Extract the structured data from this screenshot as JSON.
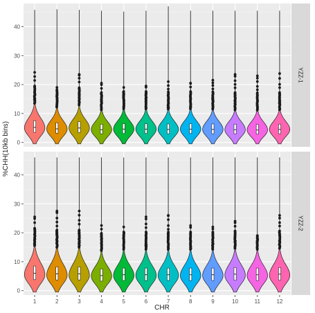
{
  "chart_data": {
    "type": "violin",
    "xlabel": "CHR",
    "ylabel": "%CHH(10kb bins)",
    "categories": [
      "1",
      "2",
      "3",
      "4",
      "5",
      "6",
      "7",
      "8",
      "9",
      "10",
      "11",
      "12"
    ],
    "ylim": [
      -1.5,
      48
    ],
    "yticks": [
      "0",
      "10",
      "20",
      "30",
      "40"
    ],
    "grid": true,
    "legend": "none",
    "colors": [
      "#F8766D",
      "#DE8C00",
      "#B79F00",
      "#7CAE00",
      "#00BA38",
      "#00C08B",
      "#00BFC4",
      "#00B4F0",
      "#619CFF",
      "#C77CFF",
      "#F564E3",
      "#FF64B0"
    ],
    "panels": [
      {
        "strip": "YZZ-1",
        "series": [
          {
            "category": "1",
            "median": 5.2,
            "q1": 3.5,
            "q3": 7.5,
            "max": 45.8,
            "mode": 5.0,
            "max_outlier": 24.2
          },
          {
            "category": "2",
            "median": 4.7,
            "q1": 3.2,
            "q3": 6.8,
            "max": 46.0,
            "mode": 4.6,
            "max_outlier": 19.0
          },
          {
            "category": "3",
            "median": 5.0,
            "q1": 3.4,
            "q3": 7.2,
            "max": 45.8,
            "mode": 5.0,
            "max_outlier": 23.5
          },
          {
            "category": "4",
            "median": 4.4,
            "q1": 3.0,
            "q3": 6.3,
            "max": 45.5,
            "mode": 4.4,
            "max_outlier": 20.5
          },
          {
            "category": "5",
            "median": 4.6,
            "q1": 3.1,
            "q3": 6.5,
            "max": 45.2,
            "mode": 4.6,
            "max_outlier": 19.0
          },
          {
            "category": "6",
            "median": 4.6,
            "q1": 3.1,
            "q3": 6.5,
            "max": 45.5,
            "mode": 4.6,
            "max_outlier": 19.5
          },
          {
            "category": "7",
            "median": 4.5,
            "q1": 3.0,
            "q3": 6.4,
            "max": 47.0,
            "mode": 4.5,
            "max_outlier": 21.0
          },
          {
            "category": "8",
            "median": 4.6,
            "q1": 3.1,
            "q3": 6.5,
            "max": 45.5,
            "mode": 4.6,
            "max_outlier": 20.5
          },
          {
            "category": "9",
            "median": 4.5,
            "q1": 3.0,
            "q3": 6.4,
            "max": 45.5,
            "mode": 4.5,
            "max_outlier": 21.5
          },
          {
            "category": "10",
            "median": 4.4,
            "q1": 3.0,
            "q3": 6.3,
            "max": 45.5,
            "mode": 4.4,
            "max_outlier": 23.5
          },
          {
            "category": "11",
            "median": 4.3,
            "q1": 2.9,
            "q3": 6.2,
            "max": 45.5,
            "mode": 4.3,
            "max_outlier": 23.0
          },
          {
            "category": "12",
            "median": 4.5,
            "q1": 3.0,
            "q3": 6.3,
            "max": 45.5,
            "mode": 4.5,
            "max_outlier": 23.8
          }
        ]
      },
      {
        "strip": "YZZ-2",
        "series": [
          {
            "category": "1",
            "median": 6.0,
            "q1": 3.8,
            "q3": 8.5,
            "max": 46.0,
            "mode": 5.5,
            "max_outlier": 25.5
          },
          {
            "category": "2",
            "median": 5.8,
            "q1": 3.7,
            "q3": 8.2,
            "max": 46.0,
            "mode": 5.3,
            "max_outlier": 27.5
          },
          {
            "category": "3",
            "median": 5.8,
            "q1": 3.7,
            "q3": 8.2,
            "max": 46.0,
            "mode": 5.3,
            "max_outlier": 27.5
          },
          {
            "category": "4",
            "median": 5.2,
            "q1": 3.3,
            "q3": 7.5,
            "max": 46.0,
            "mode": 5.0,
            "max_outlier": 22.5
          },
          {
            "category": "5",
            "median": 5.5,
            "q1": 3.5,
            "q3": 7.8,
            "max": 46.0,
            "mode": 5.2,
            "max_outlier": 22.0
          },
          {
            "category": "6",
            "median": 5.5,
            "q1": 3.5,
            "q3": 7.8,
            "max": 46.0,
            "mode": 5.2,
            "max_outlier": 25.5
          },
          {
            "category": "7",
            "median": 5.5,
            "q1": 3.5,
            "q3": 7.8,
            "max": 46.0,
            "mode": 5.2,
            "max_outlier": 26.0
          },
          {
            "category": "8",
            "median": 5.5,
            "q1": 3.5,
            "q3": 7.8,
            "max": 46.0,
            "mode": 5.2,
            "max_outlier": 22.5
          },
          {
            "category": "9",
            "median": 5.5,
            "q1": 3.5,
            "q3": 7.8,
            "max": 46.0,
            "mode": 5.2,
            "max_outlier": 22.0
          },
          {
            "category": "10",
            "median": 5.7,
            "q1": 3.6,
            "q3": 8.0,
            "max": 46.0,
            "mode": 5.3,
            "max_outlier": 24.0
          },
          {
            "category": "11",
            "median": 5.5,
            "q1": 3.5,
            "q3": 7.8,
            "max": 46.0,
            "mode": 5.2,
            "max_outlier": 19.0
          },
          {
            "category": "12",
            "median": 5.7,
            "q1": 3.6,
            "q3": 8.0,
            "max": 46.0,
            "mode": 5.3,
            "max_outlier": 26.0
          }
        ]
      }
    ]
  }
}
